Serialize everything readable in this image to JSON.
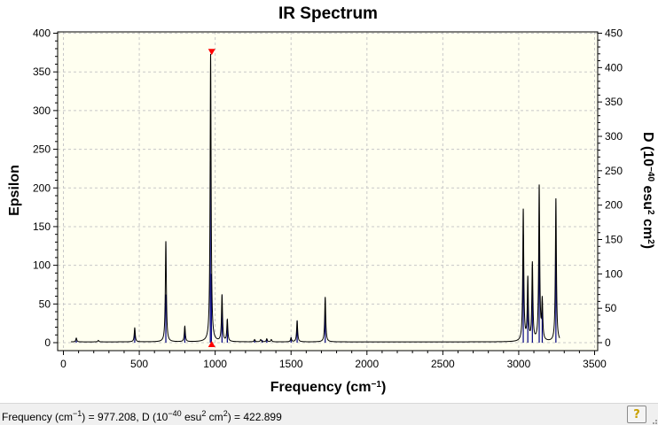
{
  "chart_data": {
    "type": "line",
    "title": "IR Spectrum",
    "xlabel": "Frequency (cm−1)",
    "xlim": [
      0,
      3500
    ],
    "xticks": [
      "0",
      "500",
      "1000",
      "1500",
      "2000",
      "2500",
      "3000",
      "3500"
    ],
    "left_axis": {
      "label": "Epsilon",
      "ylim": [
        0,
        400
      ],
      "ticks": [
        "0",
        "50",
        "100",
        "150",
        "200",
        "250",
        "300",
        "350",
        "400"
      ]
    },
    "right_axis": {
      "label": "D (10−40 esu2 cm2)",
      "ylim": [
        0,
        450
      ],
      "ticks": [
        "0",
        "50",
        "100",
        "150",
        "200",
        "250",
        "300",
        "350",
        "400",
        "450"
      ]
    },
    "grid": true,
    "epsilon_curve": {
      "x_range": [
        50,
        3270
      ],
      "baseline": 1,
      "peaks": [
        {
          "x": 85,
          "y": 5
        },
        {
          "x": 230,
          "y": 2
        },
        {
          "x": 470,
          "y": 18
        },
        {
          "x": 675,
          "y": 130
        },
        {
          "x": 800,
          "y": 20
        },
        {
          "x": 970,
          "y": 372
        },
        {
          "x": 1045,
          "y": 60
        },
        {
          "x": 1080,
          "y": 28
        },
        {
          "x": 1260,
          "y": 3
        },
        {
          "x": 1300,
          "y": 3
        },
        {
          "x": 1340,
          "y": 4
        },
        {
          "x": 1370,
          "y": 3
        },
        {
          "x": 1500,
          "y": 5
        },
        {
          "x": 1540,
          "y": 27
        },
        {
          "x": 1725,
          "y": 58
        },
        {
          "x": 3030,
          "y": 170
        },
        {
          "x": 3060,
          "y": 80
        },
        {
          "x": 3090,
          "y": 100
        },
        {
          "x": 3135,
          "y": 200
        },
        {
          "x": 3155,
          "y": 50
        },
        {
          "x": 3245,
          "y": 185
        }
      ]
    },
    "intensity_sticks": [
      {
        "x": 85,
        "y": 3
      },
      {
        "x": 470,
        "y": 18
      },
      {
        "x": 675,
        "y": 70
      },
      {
        "x": 800,
        "y": 22
      },
      {
        "x": 968,
        "y": 265
      },
      {
        "x": 975,
        "y": 100
      },
      {
        "x": 1045,
        "y": 58
      },
      {
        "x": 1080,
        "y": 33
      },
      {
        "x": 1260,
        "y": 4
      },
      {
        "x": 1310,
        "y": 4
      },
      {
        "x": 1340,
        "y": 5
      },
      {
        "x": 1500,
        "y": 8
      },
      {
        "x": 1540,
        "y": 32
      },
      {
        "x": 1725,
        "y": 50
      },
      {
        "x": 3030,
        "y": 157
      },
      {
        "x": 3060,
        "y": 75
      },
      {
        "x": 3090,
        "y": 110
      },
      {
        "x": 3135,
        "y": 155
      },
      {
        "x": 3155,
        "y": 60
      },
      {
        "x": 3245,
        "y": 135
      }
    ],
    "marker": {
      "x": 977.208,
      "epsilon": 374
    }
  },
  "status": {
    "text": "Frequency (cm−1) = 977.208, D (10−40 esu2 cm2) = 422.899",
    "help_label": "?"
  },
  "colors": {
    "plot_background": "#fffff0",
    "curve": "#000000",
    "sticks": "#00007f",
    "marker": "#ff0000",
    "grid": "#c8c8c8"
  }
}
